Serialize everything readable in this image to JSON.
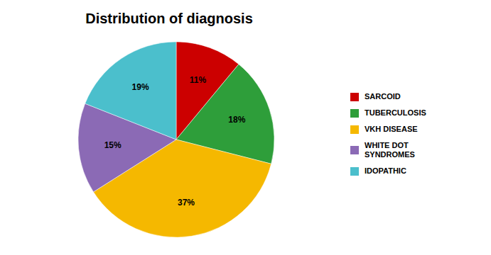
{
  "chart_data": {
    "type": "pie",
    "title": "Distribution of diagnosis",
    "categories": [
      "SARCOID",
      "TUBERCULOSIS",
      "VKH DISEASE",
      "WHITE DOT\nSYNDROMES",
      "IDOPATHIC"
    ],
    "values": [
      11,
      18,
      37,
      15,
      19
    ],
    "value_labels": [
      "11%",
      "18%",
      "37%",
      "15%",
      "19%"
    ],
    "colors": [
      "#cc0000",
      "#2e9e3a",
      "#f5b800",
      "#8b6ab5",
      "#4bbfcc"
    ],
    "data_labels": true,
    "legend": "right"
  }
}
